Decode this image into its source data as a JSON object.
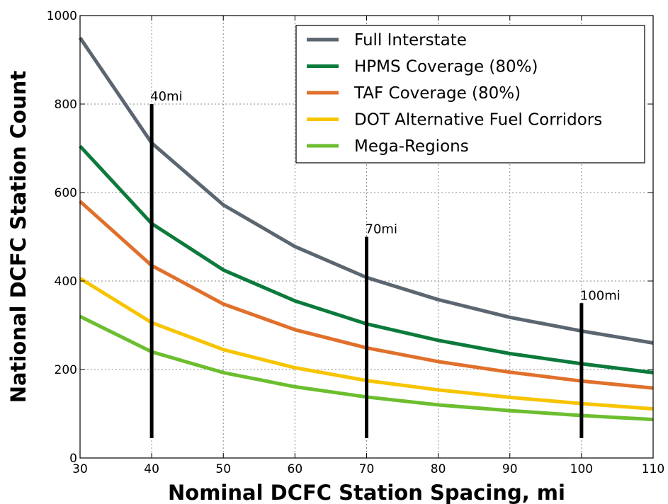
{
  "chart_data": {
    "type": "line",
    "xlabel": "Nominal DCFC Station Spacing, mi",
    "ylabel": "National DCFC Station Count",
    "xlim": [
      30,
      110
    ],
    "ylim": [
      0,
      1000
    ],
    "xticks": [
      "30",
      "40",
      "50",
      "60",
      "70",
      "80",
      "90",
      "100",
      "110"
    ],
    "yticks": [
      "0",
      "200",
      "400",
      "600",
      "800",
      "1000"
    ],
    "grid": true,
    "legend_position": "top-right",
    "x": [
      30,
      40,
      50,
      60,
      70,
      80,
      90,
      100,
      110
    ],
    "series": [
      {
        "name": "Full Interstate",
        "color": "#5b6670",
        "values": [
          950,
          712,
          572,
          478,
          408,
          358,
          318,
          287,
          260
        ]
      },
      {
        "name": "HPMS Coverage (80%)",
        "color": "#0b7a3b",
        "values": [
          705,
          530,
          425,
          355,
          303,
          266,
          236,
          213,
          193
        ]
      },
      {
        "name": "TAF Coverage (80%)",
        "color": "#e0702b",
        "values": [
          580,
          435,
          348,
          290,
          249,
          218,
          194,
          174,
          158
        ]
      },
      {
        "name": "DOT Alternative Fuel Corridors",
        "color": "#f7c400",
        "values": [
          406,
          306,
          245,
          204,
          175,
          154,
          137,
          123,
          111
        ]
      },
      {
        "name": "Mega-Regions",
        "color": "#6cbe2f",
        "values": [
          320,
          240,
          193,
          161,
          138,
          120,
          107,
          96,
          87
        ]
      }
    ],
    "annotations": [
      {
        "label": "40mi",
        "x": 40,
        "y_from": 45,
        "y_to": 800
      },
      {
        "label": "70mi",
        "x": 70,
        "y_from": 45,
        "y_to": 500
      },
      {
        "label": "100mi",
        "x": 100,
        "y_from": 45,
        "y_to": 350
      }
    ]
  }
}
